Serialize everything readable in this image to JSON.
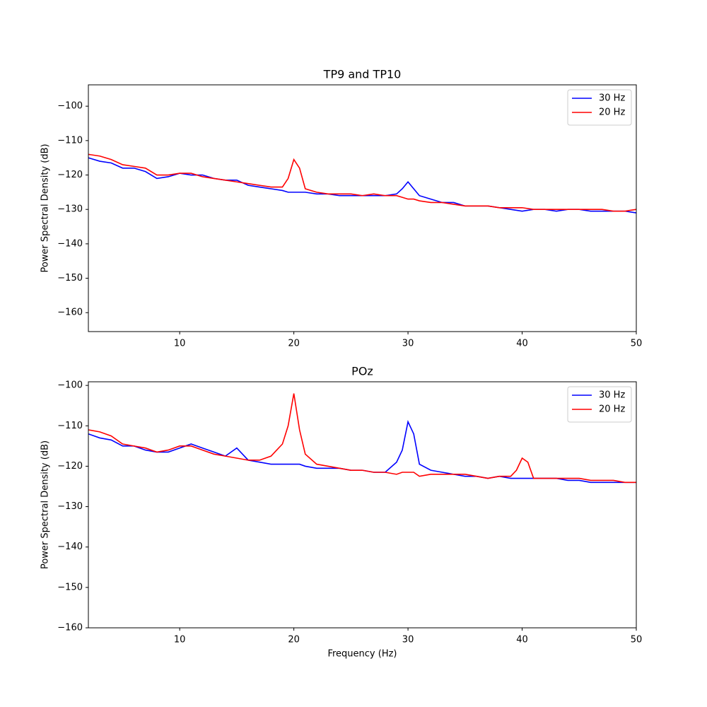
{
  "chart_data": [
    {
      "type": "line",
      "title": "TP9 and TP10",
      "ylabel": "Power Spectral Density (dB)",
      "x": [
        2,
        3,
        4,
        5,
        6,
        7,
        8,
        9,
        10,
        11,
        12,
        13,
        14,
        15,
        16,
        17,
        18,
        19,
        19.5,
        20,
        20.5,
        21,
        22,
        23,
        24,
        25,
        26,
        27,
        28,
        29,
        29.5,
        30,
        30.5,
        31,
        32,
        33,
        34,
        35,
        36,
        37,
        38,
        39,
        40,
        41,
        42,
        43,
        44,
        45,
        46,
        47,
        48,
        49,
        50
      ],
      "series": [
        {
          "name": "30 Hz",
          "color": "#0000ff",
          "values": [
            -115,
            -116,
            -116.5,
            -118,
            -118,
            -119,
            -121,
            -120.5,
            -119.5,
            -120,
            -120,
            -121,
            -121.5,
            -121.5,
            -123,
            -123.5,
            -124,
            -124.5,
            -125,
            -125,
            -125,
            -125,
            -125.5,
            -125.5,
            -126,
            -126,
            -126,
            -126,
            -126,
            -125.5,
            -124,
            -122,
            -124,
            -126,
            -127,
            -128,
            -128,
            -129,
            -129,
            -129,
            -129.5,
            -130,
            -130.5,
            -130,
            -130,
            -130.5,
            -130,
            -130,
            -130.5,
            -130.5,
            -130.5,
            -130.5,
            -131
          ]
        },
        {
          "name": "20 Hz",
          "color": "#ff0000",
          "values": [
            -114,
            -114.5,
            -115.5,
            -117,
            -117.5,
            -118,
            -120,
            -120,
            -119.5,
            -119.5,
            -120.5,
            -121,
            -121.5,
            -122,
            -122.5,
            -123,
            -123.5,
            -123.5,
            -121,
            -115.5,
            -118,
            -124,
            -125,
            -125.5,
            -125.5,
            -125.5,
            -126,
            -125.5,
            -126,
            -126,
            -126.5,
            -127,
            -127,
            -127.5,
            -128,
            -128,
            -128.5,
            -129,
            -129,
            -129,
            -129.5,
            -129.5,
            -129.5,
            -130,
            -130,
            -130,
            -130,
            -130,
            -130,
            -130,
            -130.5,
            -130.5,
            -130
          ]
        }
      ],
      "xlim": [
        2,
        50
      ],
      "xticks": [
        10,
        20,
        30,
        40,
        50
      ],
      "ylim": [
        -165.5,
        -93.8
      ],
      "yticks": [
        {
          "value": -160,
          "label": "−160"
        },
        {
          "value": -150,
          "label": "−150"
        },
        {
          "value": -140,
          "label": "−140"
        },
        {
          "value": -130,
          "label": "−130"
        },
        {
          "value": -120,
          "label": "−120"
        },
        {
          "value": -110,
          "label": "−110"
        },
        {
          "value": -100,
          "label": "−100"
        }
      ],
      "legend": "upper right"
    },
    {
      "type": "line",
      "title": "POz",
      "ylabel": "Power Spectral Density (dB)",
      "xlabel": "Frequency (Hz)",
      "x": [
        2,
        3,
        4,
        5,
        6,
        7,
        8,
        9,
        10,
        11,
        12,
        13,
        14,
        15,
        16,
        17,
        18,
        19,
        19.5,
        20,
        20.5,
        21,
        22,
        23,
        24,
        25,
        26,
        27,
        28,
        29,
        29.5,
        30,
        30.5,
        31,
        32,
        33,
        34,
        35,
        36,
        37,
        38,
        39,
        39.5,
        40,
        40.5,
        41,
        42,
        43,
        44,
        45,
        46,
        47,
        48,
        49,
        50
      ],
      "series": [
        {
          "name": "30 Hz",
          "color": "#0000ff",
          "values": [
            -112,
            -113,
            -113.5,
            -115,
            -115,
            -116,
            -116.5,
            -116.5,
            -115.5,
            -114.5,
            -115.5,
            -116.5,
            -117.5,
            -115.5,
            -118.5,
            -119,
            -119.5,
            -119.5,
            -119.5,
            -119.5,
            -119.5,
            -120,
            -120.5,
            -120.5,
            -120.5,
            -121,
            -121,
            -121.5,
            -121.5,
            -119,
            -116,
            -109,
            -112,
            -119.5,
            -121,
            -121.5,
            -122,
            -122.5,
            -122.5,
            -123,
            -122.5,
            -123,
            -123,
            -123,
            -123,
            -123,
            -123,
            -123,
            -123.5,
            -123.5,
            -124,
            -124,
            -124,
            -124,
            -124
          ]
        },
        {
          "name": "20 Hz",
          "color": "#ff0000",
          "values": [
            -111,
            -111.5,
            -112.5,
            -114.5,
            -115,
            -115.5,
            -116.5,
            -116,
            -115,
            -115,
            -116,
            -117,
            -117.5,
            -118,
            -118.5,
            -118.5,
            -117.5,
            -114.5,
            -110,
            -102,
            -111,
            -117,
            -119.5,
            -120,
            -120.5,
            -121,
            -121,
            -121.5,
            -121.5,
            -122,
            -121.5,
            -121.5,
            -121.5,
            -122.5,
            -122,
            -122,
            -122,
            -122,
            -122.5,
            -123,
            -122.5,
            -122.5,
            -121,
            -118,
            -119,
            -123,
            -123,
            -123,
            -123,
            -123,
            -123.5,
            -123.5,
            -123.5,
            -124,
            -124
          ]
        }
      ],
      "xlim": [
        2,
        50
      ],
      "xticks": [
        10,
        20,
        30,
        40,
        50
      ],
      "ylim": [
        -160,
        -99.1
      ],
      "yticks": [
        {
          "value": -160,
          "label": "−160"
        },
        {
          "value": -150,
          "label": "−150"
        },
        {
          "value": -140,
          "label": "−140"
        },
        {
          "value": -130,
          "label": "−130"
        },
        {
          "value": -120,
          "label": "−120"
        },
        {
          "value": -110,
          "label": "−110"
        },
        {
          "value": -100,
          "label": "−100"
        }
      ],
      "legend": "upper right"
    }
  ]
}
